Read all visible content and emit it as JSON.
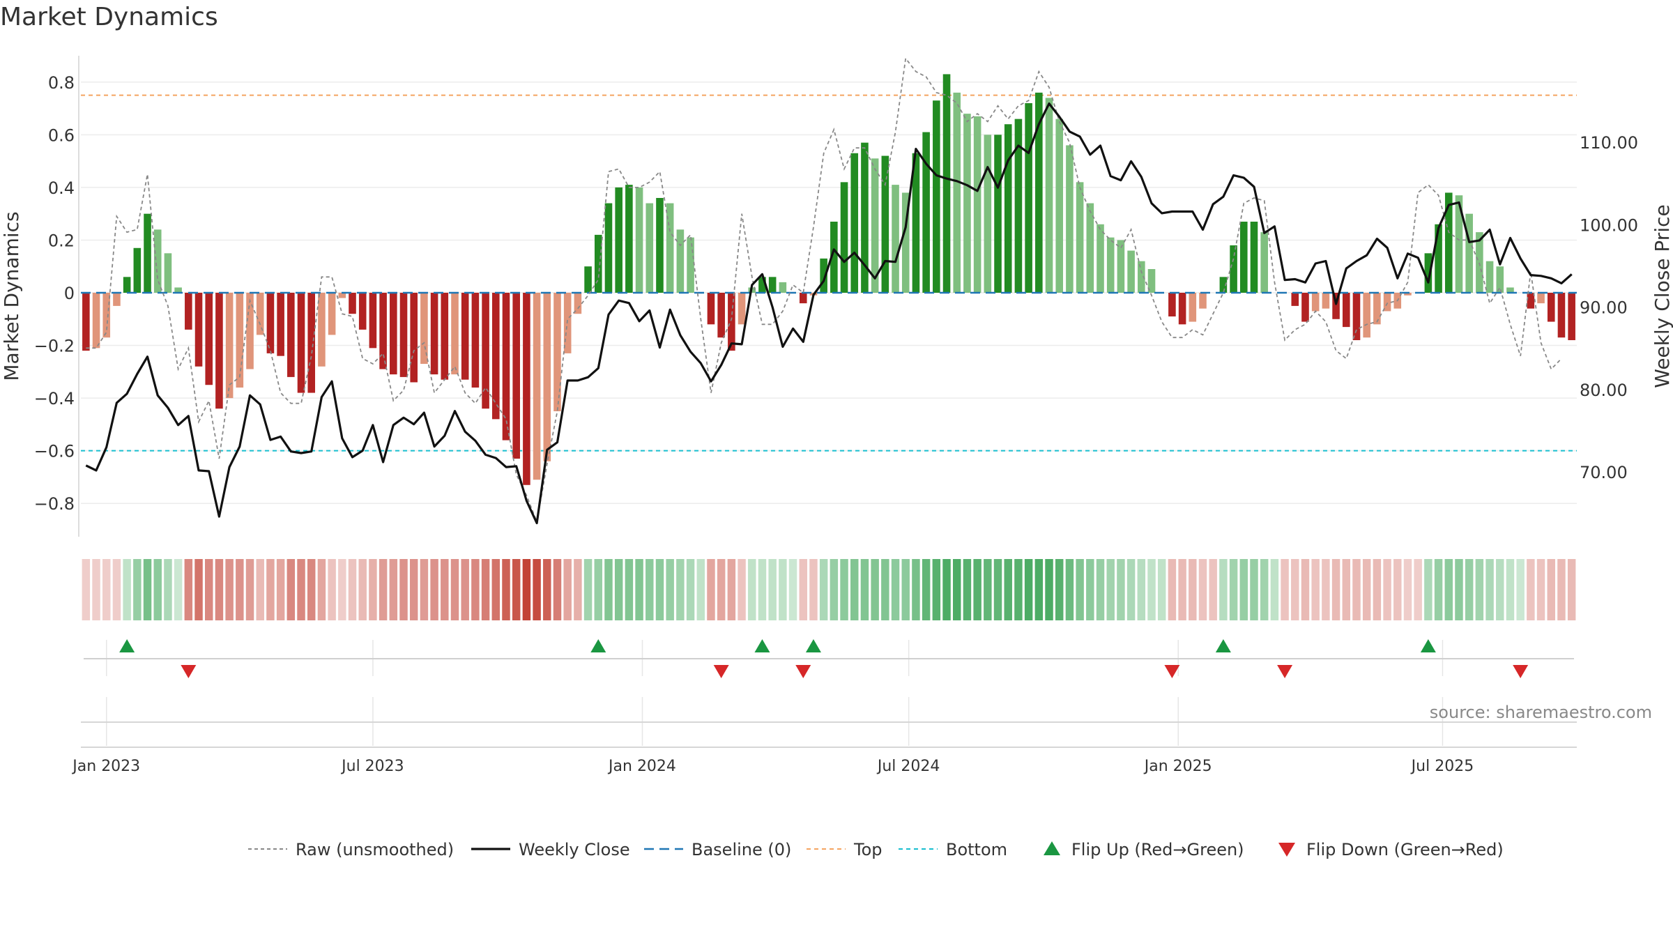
{
  "title": "Market Dynamics",
  "source": "source: sharemaestro.com",
  "colors": {
    "strong_green": "#228b22",
    "light_green": "#7fbf7f",
    "strong_red": "#b22222",
    "light_red": "#e0957a",
    "close_line": "#111111",
    "raw_line": "#888888",
    "baseline": "#1f77b4",
    "top": "#f4a460",
    "bottom": "#17becf",
    "flip_up": "#1a9641",
    "flip_down": "#d62728"
  },
  "chart_data": {
    "type": "bar",
    "ylabel_left": "Market Dynamics",
    "ylabel_right": "Weekly Close Price",
    "ylim_left": [
      -0.9,
      0.9
    ],
    "ylim_right": [
      63,
      120.5
    ],
    "yticks_left": [
      {
        "v": 0.8,
        "label": "0.8"
      },
      {
        "v": 0.6,
        "label": "0.6"
      },
      {
        "v": 0.4,
        "label": "0.4"
      },
      {
        "v": 0.2,
        "label": "0.2"
      },
      {
        "v": 0,
        "label": "0"
      },
      {
        "v": -0.2,
        "label": "−0.2"
      },
      {
        "v": -0.4,
        "label": "−0.4"
      },
      {
        "v": -0.6,
        "label": "−0.6"
      },
      {
        "v": -0.8,
        "label": "−0.8"
      }
    ],
    "yticks_right": [
      {
        "v": 110,
        "label": "110.00"
      },
      {
        "v": 100,
        "label": "100.00"
      },
      {
        "v": 90,
        "label": "90.00"
      },
      {
        "v": 80,
        "label": "80.00"
      },
      {
        "v": 70,
        "label": "70.00"
      }
    ],
    "x_ticks": [
      {
        "i": 2,
        "label": "Jan 2023"
      },
      {
        "i": 28,
        "label": "Jul 2023"
      },
      {
        "i": 54.3,
        "label": "Jan 2024"
      },
      {
        "i": 80.3,
        "label": "Jul 2024"
      },
      {
        "i": 106.6,
        "label": "Jan 2025"
      },
      {
        "i": 132.4,
        "label": "Jul 2025"
      }
    ],
    "top_level": 0.75,
    "bottom_level": -0.6,
    "dynamics": [
      -0.22,
      -0.21,
      -0.17,
      -0.05,
      0.06,
      0.17,
      0.3,
      0.24,
      0.15,
      0.02,
      -0.14,
      -0.28,
      -0.35,
      -0.44,
      -0.4,
      -0.36,
      -0.29,
      -0.16,
      -0.23,
      -0.24,
      -0.32,
      -0.38,
      -0.38,
      -0.28,
      -0.16,
      -0.02,
      -0.08,
      -0.14,
      -0.21,
      -0.29,
      -0.31,
      -0.32,
      -0.34,
      -0.27,
      -0.31,
      -0.33,
      -0.31,
      -0.33,
      -0.36,
      -0.44,
      -0.48,
      -0.56,
      -0.63,
      -0.73,
      -0.71,
      -0.64,
      -0.45,
      -0.23,
      -0.08,
      0.1,
      0.22,
      0.34,
      0.4,
      0.41,
      0.4,
      0.34,
      0.36,
      0.34,
      0.24,
      0.21,
      0.0,
      -0.12,
      -0.17,
      -0.22,
      -0.12,
      0.02,
      0.06,
      0.06,
      0.04,
      0.0,
      -0.04,
      -0.01,
      0.13,
      0.27,
      0.42,
      0.53,
      0.57,
      0.51,
      0.52,
      0.41,
      0.38,
      0.53,
      0.61,
      0.73,
      0.83,
      0.76,
      0.68,
      0.67,
      0.6,
      0.6,
      0.64,
      0.66,
      0.72,
      0.76,
      0.74,
      0.66,
      0.56,
      0.42,
      0.34,
      0.26,
      0.21,
      0.2,
      0.16,
      0.12,
      0.09,
      0.0,
      -0.09,
      -0.12,
      -0.11,
      -0.06,
      0.0,
      0.06,
      0.18,
      0.27,
      0.27,
      0.23,
      0.0,
      0.0,
      -0.05,
      -0.11,
      -0.07,
      -0.06,
      -0.1,
      -0.13,
      -0.18,
      -0.17,
      -0.12,
      -0.07,
      -0.06,
      -0.01,
      0.0,
      0.15,
      0.26,
      0.38,
      0.37,
      0.3,
      0.23,
      0.12,
      0.1,
      0.02,
      0.0,
      -0.06,
      -0.04,
      -0.11,
      -0.17,
      -0.18
    ],
    "raw": [
      -0.21,
      -0.21,
      -0.15,
      0.29,
      0.23,
      0.24,
      0.45,
      0.05,
      -0.05,
      -0.29,
      -0.21,
      -0.49,
      -0.41,
      -0.63,
      -0.35,
      -0.32,
      -0.03,
      -0.12,
      -0.22,
      -0.38,
      -0.42,
      -0.42,
      -0.24,
      0.06,
      0.06,
      -0.08,
      -0.09,
      -0.25,
      -0.27,
      -0.23,
      -0.41,
      -0.37,
      -0.22,
      -0.19,
      -0.38,
      -0.33,
      -0.28,
      -0.38,
      -0.42,
      -0.36,
      -0.42,
      -0.48,
      -0.69,
      -0.77,
      -0.87,
      -0.65,
      -0.45,
      -0.1,
      -0.06,
      -0.01,
      0.05,
      0.46,
      0.47,
      0.4,
      0.4,
      0.42,
      0.46,
      0.23,
      0.18,
      0.22,
      -0.1,
      -0.38,
      -0.19,
      -0.1,
      0.3,
      0.06,
      -0.12,
      -0.12,
      -0.07,
      0.03,
      0.0,
      0.25,
      0.53,
      0.62,
      0.47,
      0.55,
      0.55,
      0.47,
      0.41,
      0.61,
      0.89,
      0.84,
      0.82,
      0.76,
      0.75,
      0.72,
      0.65,
      0.68,
      0.65,
      0.71,
      0.66,
      0.71,
      0.73,
      0.84,
      0.78,
      0.65,
      0.57,
      0.4,
      0.31,
      0.24,
      0.2,
      0.17,
      0.24,
      0.08,
      -0.01,
      -0.11,
      -0.17,
      -0.17,
      -0.14,
      -0.16,
      -0.08,
      0.0,
      0.13,
      0.34,
      0.36,
      0.35,
      0.04,
      -0.18,
      -0.14,
      -0.12,
      -0.07,
      -0.11,
      -0.22,
      -0.25,
      -0.14,
      -0.12,
      -0.11,
      -0.04,
      -0.03,
      0.04,
      0.38,
      0.41,
      0.37,
      0.23,
      0.2,
      0.2,
      0.11,
      -0.04,
      0.02,
      -0.12,
      -0.24,
      0.08,
      -0.19,
      -0.29,
      -0.25
    ],
    "close": [
      70.8,
      70.2,
      73.0,
      78.4,
      79.5,
      81.9,
      84.0,
      79.3,
      77.8,
      75.7,
      76.8,
      70.2,
      70.1,
      64.6,
      70.6,
      73.1,
      79.3,
      78.2,
      73.9,
      74.3,
      72.5,
      72.3,
      72.5,
      79.1,
      81.0,
      74.1,
      71.8,
      72.6,
      75.7,
      71.2,
      75.7,
      76.6,
      75.8,
      77.2,
      73.1,
      74.4,
      77.4,
      74.9,
      73.8,
      72.1,
      71.7,
      70.6,
      70.7,
      66.5,
      63.8,
      72.7,
      73.6,
      81.1,
      81.1,
      81.5,
      82.6,
      89.1,
      90.8,
      90.5,
      88.3,
      89.6,
      85.1,
      89.7,
      86.6,
      84.6,
      83.2,
      81.0,
      83.0,
      85.6,
      85.5,
      92.7,
      94.0,
      90.0,
      85.2,
      87.4,
      85.8,
      91.5,
      93.2,
      97.0,
      95.5,
      96.6,
      95.1,
      93.5,
      95.6,
      95.5,
      99.7,
      109.2,
      107.4,
      106.0,
      105.6,
      105.3,
      104.8,
      104.1,
      107.0,
      104.5,
      107.8,
      109.6,
      108.7,
      112.2,
      114.7,
      113.1,
      111.3,
      110.7,
      108.5,
      109.6,
      105.9,
      105.4,
      107.7,
      105.8,
      102.6,
      101.4,
      101.6,
      101.6,
      101.6,
      99.4,
      102.5,
      103.4,
      106.0,
      105.7,
      104.6,
      99.0,
      99.8,
      93.3,
      93.4,
      93.0,
      95.3,
      95.6,
      90.4,
      94.7,
      95.6,
      96.3,
      98.3,
      97.2,
      93.5,
      96.5,
      96.0,
      93.0,
      99.6,
      102.4,
      102.7,
      97.9,
      98.1,
      99.4,
      95.2,
      98.4,
      95.9,
      93.9,
      93.8,
      93.5,
      92.9,
      94.0
    ],
    "regime_strength": [
      0.25,
      0.25,
      0.25,
      0.25,
      0.3,
      0.5,
      0.65,
      0.55,
      0.4,
      0.25,
      0.6,
      0.7,
      0.6,
      0.6,
      0.55,
      0.55,
      0.5,
      0.35,
      0.45,
      0.45,
      0.6,
      0.6,
      0.6,
      0.45,
      0.3,
      0.25,
      0.3,
      0.35,
      0.4,
      0.5,
      0.5,
      0.55,
      0.55,
      0.5,
      0.55,
      0.55,
      0.55,
      0.55,
      0.6,
      0.65,
      0.7,
      0.8,
      0.85,
      0.95,
      0.9,
      0.8,
      0.65,
      0.45,
      0.4,
      0.45,
      0.5,
      0.6,
      0.6,
      0.6,
      0.6,
      0.55,
      0.55,
      0.5,
      0.45,
      0.4,
      0.3,
      0.45,
      0.45,
      0.45,
      0.3,
      0.3,
      0.3,
      0.3,
      0.3,
      0.25,
      0.3,
      0.3,
      0.4,
      0.5,
      0.55,
      0.6,
      0.6,
      0.6,
      0.6,
      0.55,
      0.55,
      0.65,
      0.75,
      0.8,
      0.85,
      0.85,
      0.8,
      0.8,
      0.75,
      0.75,
      0.8,
      0.8,
      0.85,
      0.85,
      0.85,
      0.8,
      0.7,
      0.6,
      0.55,
      0.5,
      0.45,
      0.45,
      0.4,
      0.35,
      0.3,
      0.3,
      0.35,
      0.35,
      0.35,
      0.3,
      0.3,
      0.35,
      0.45,
      0.5,
      0.5,
      0.45,
      0.3,
      0.3,
      0.3,
      0.35,
      0.3,
      0.3,
      0.35,
      0.35,
      0.35,
      0.35,
      0.35,
      0.3,
      0.3,
      0.25,
      0.25,
      0.4,
      0.5,
      0.55,
      0.55,
      0.5,
      0.45,
      0.4,
      0.35,
      0.3,
      0.25,
      0.3,
      0.3,
      0.35,
      0.35,
      0.35
    ],
    "flip_up_indices": [
      4,
      50,
      66,
      71,
      111,
      131
    ],
    "flip_down_indices": [
      10,
      62,
      70,
      106,
      117,
      140
    ],
    "legend": {
      "placement": "bottom-center",
      "entries": [
        {
          "key": "raw",
          "label": "Raw (unsmoothed)"
        },
        {
          "key": "close",
          "label": "Weekly Close"
        },
        {
          "key": "baseline",
          "label": "Baseline (0)"
        },
        {
          "key": "top",
          "label": "Top"
        },
        {
          "key": "bottom",
          "label": "Bottom"
        },
        {
          "key": "up",
          "label": "Flip Up (Red→Green)"
        },
        {
          "key": "down",
          "label": "Flip Down (Green→Red)"
        }
      ]
    }
  }
}
